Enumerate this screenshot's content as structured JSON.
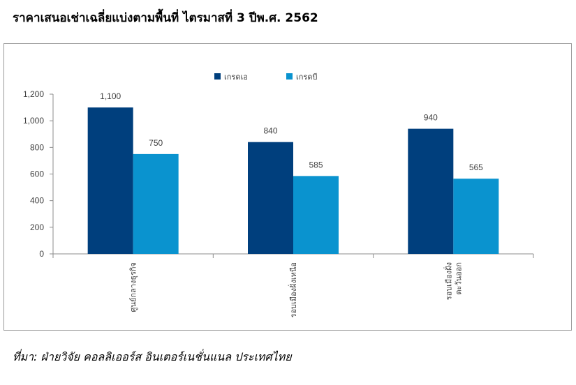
{
  "title": "ราคาเสนอเช่าเฉลี่ยแบ่งตามพื้นที่ ไตรมาสที่ 3 ปีพ.ศ. 2562",
  "source": "ที่มา: ฝ่ายวิจัย คอลลิเออร์ส อินเตอร์เนชั่นแนล ประเทศไทย",
  "chart_data": {
    "type": "bar",
    "categories": [
      [
        "ศูนย์กลางธุรกิจ"
      ],
      [
        "รอบเมืองฝั่งเหนือ"
      ],
      [
        "รอบเมืองฝั่ง",
        "ตะวันออก"
      ]
    ],
    "series": [
      {
        "name": "เกรดเอ",
        "values": [
          1100,
          840,
          940
        ],
        "color": "#003f7d"
      },
      {
        "name": "เกรดบี",
        "values": [
          750,
          585,
          565
        ],
        "color": "#0a93cf"
      }
    ],
    "ylim": [
      0,
      1200
    ],
    "yticks": [
      "0",
      "200",
      "400",
      "600",
      "800",
      "1,000",
      "1,200"
    ],
    "data_labels": [
      [
        "1,100",
        "840",
        "940"
      ],
      [
        "750",
        "585",
        "565"
      ]
    ],
    "legend_position": "top",
    "grid": false
  }
}
